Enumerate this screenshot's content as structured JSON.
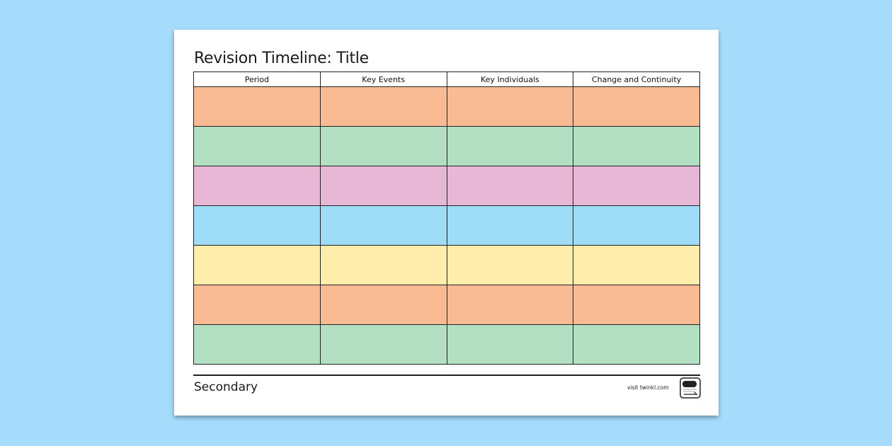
{
  "document": {
    "title": "Revision Timeline: Title",
    "footer_label": "Secondary",
    "website": "visit twinkl.com",
    "logo_text": "twinkl"
  },
  "table": {
    "headers": [
      "Period",
      "Key Events",
      "Key Individuals",
      "Change and Continuity"
    ],
    "rows": [
      {
        "color": "#f9bb94",
        "cells": [
          "",
          "",
          "",
          ""
        ]
      },
      {
        "color": "#b3dfc3",
        "cells": [
          "",
          "",
          "",
          ""
        ]
      },
      {
        "color": "#e9b7d6",
        "cells": [
          "",
          "",
          "",
          ""
        ]
      },
      {
        "color": "#9fdcf7",
        "cells": [
          "",
          "",
          "",
          ""
        ]
      },
      {
        "color": "#feedab",
        "cells": [
          "",
          "",
          "",
          ""
        ]
      },
      {
        "color": "#f9bb94",
        "cells": [
          "",
          "",
          "",
          ""
        ]
      },
      {
        "color": "#b3dfc3",
        "cells": [
          "",
          "",
          "",
          ""
        ]
      }
    ]
  },
  "colors": {
    "background": "#a6dcfb",
    "sheet": "#ffffff",
    "border": "#222222"
  }
}
